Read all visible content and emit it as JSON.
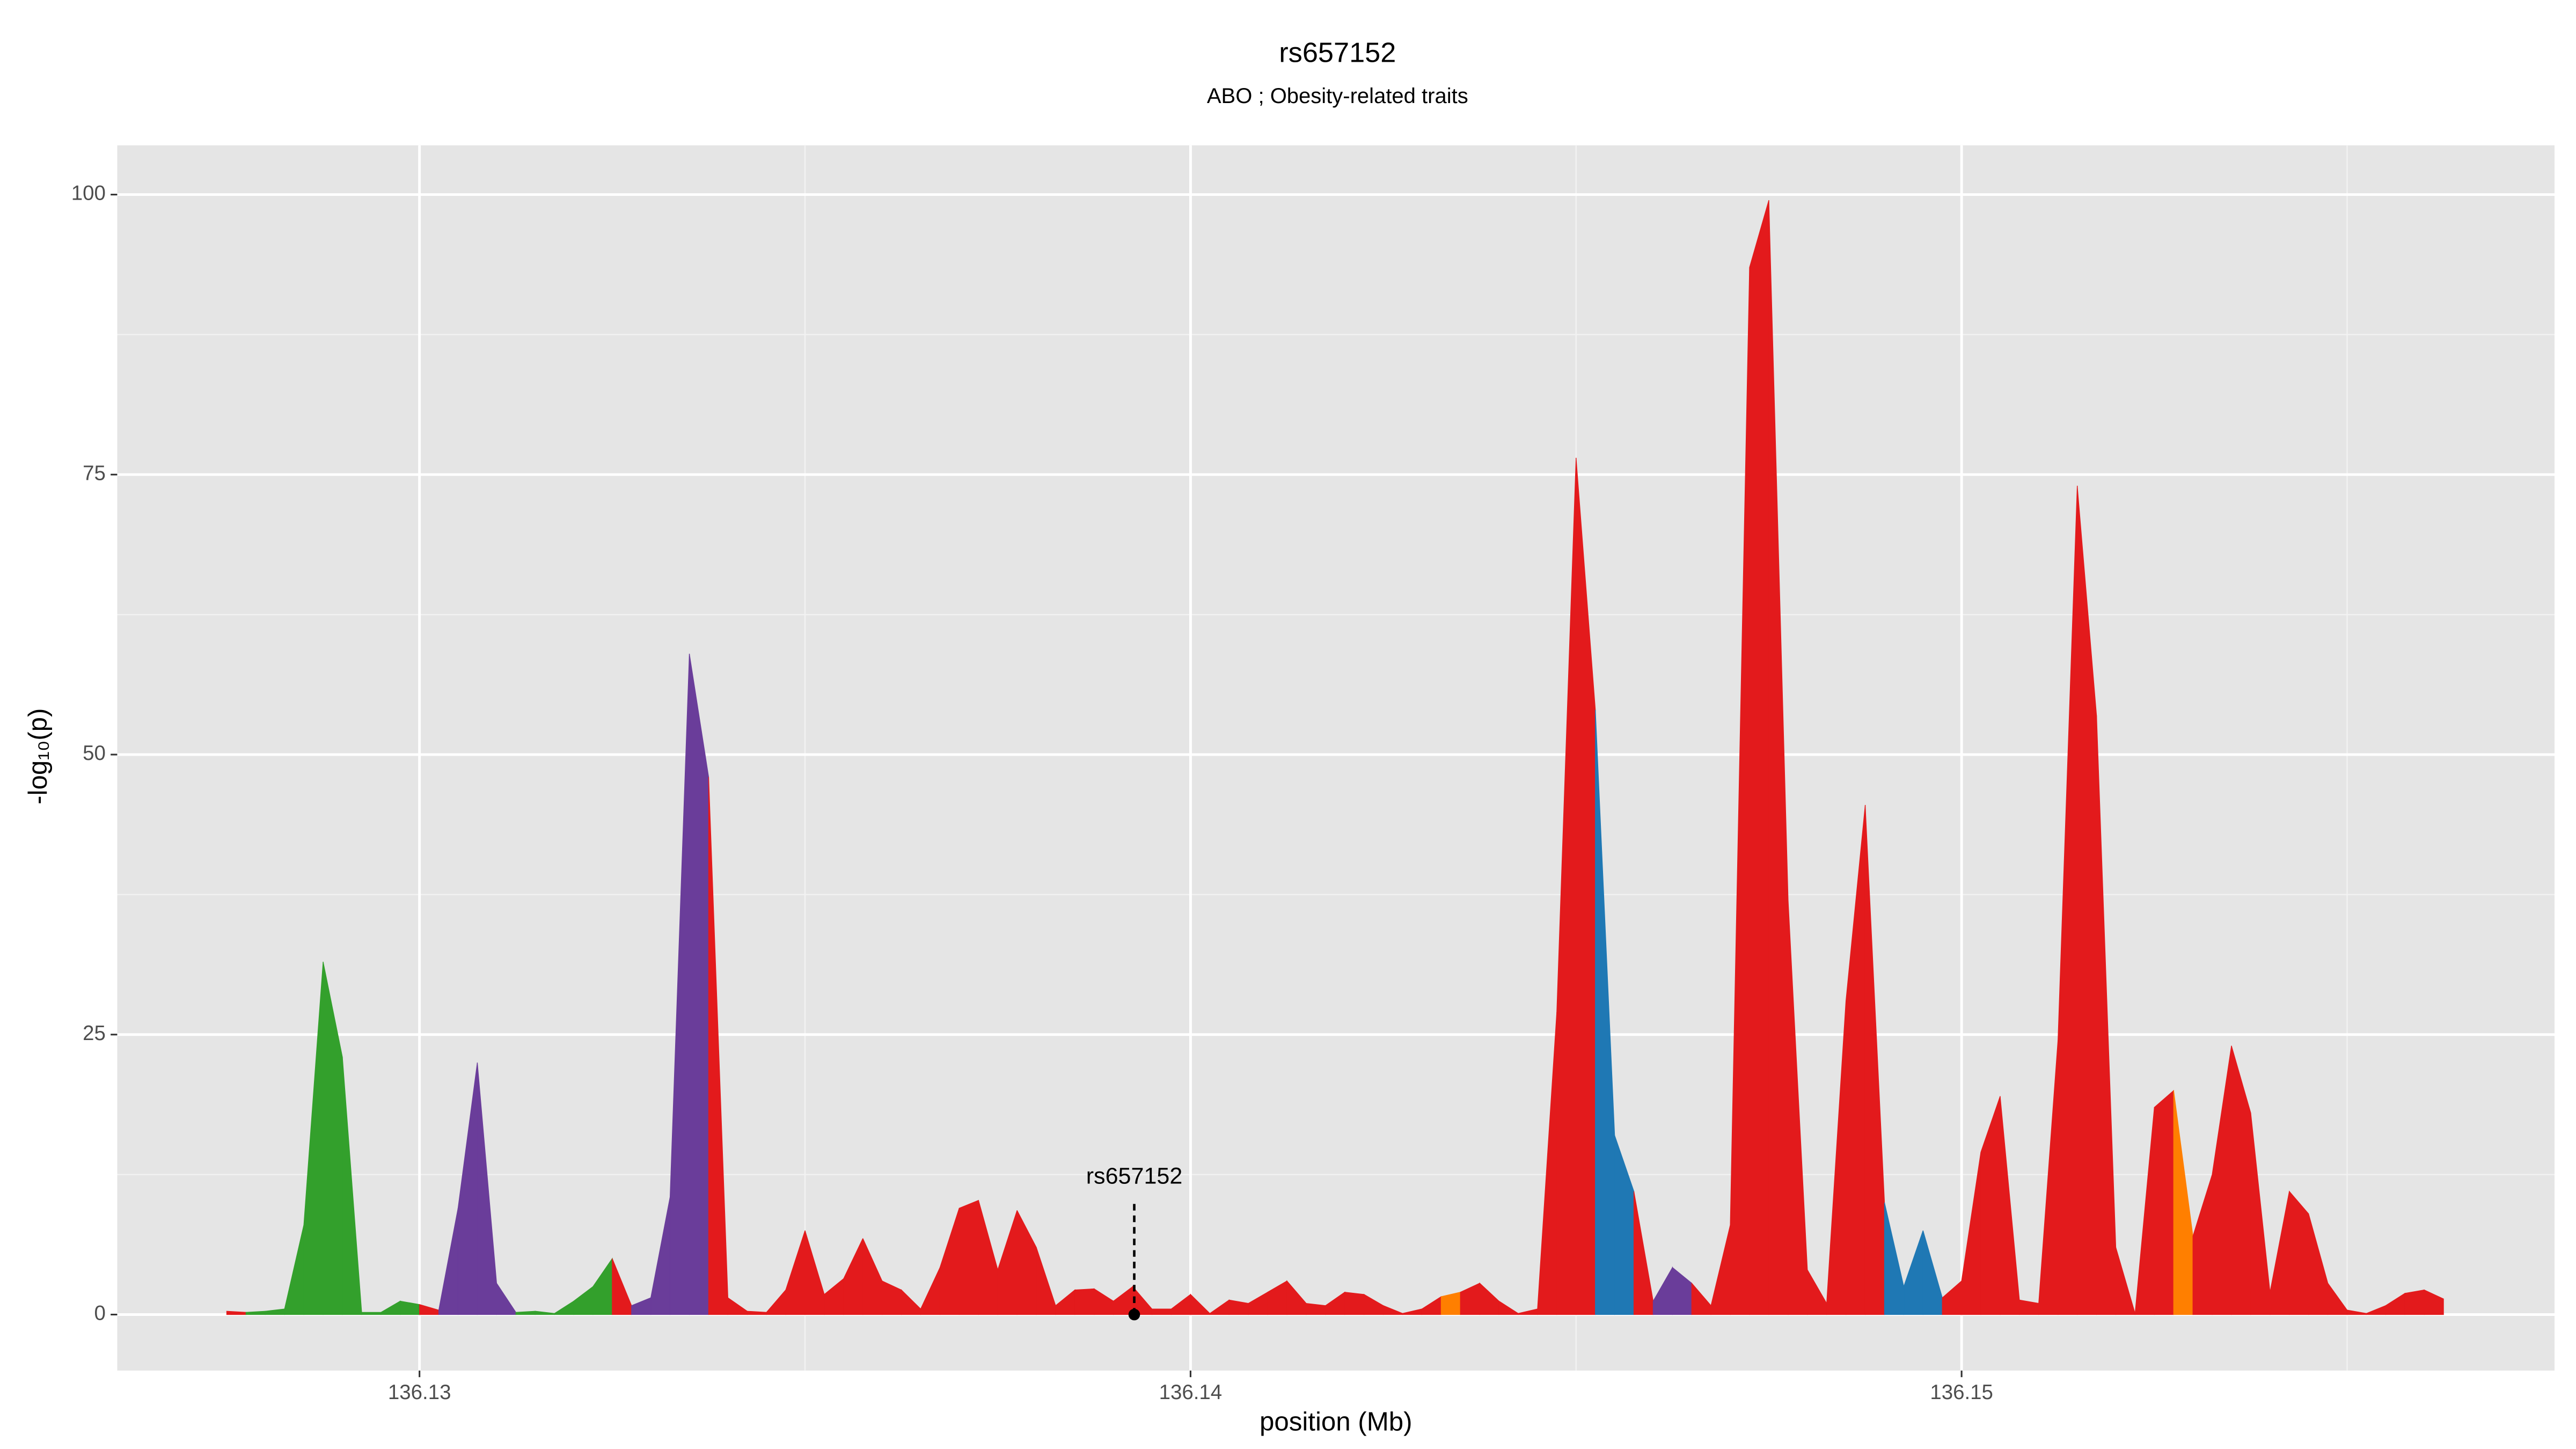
{
  "chart_data": {
    "type": "area",
    "title": "rs657152",
    "subtitle": "ABO ; Obesity-related traits",
    "x_label": "position (Mb)",
    "y_label": "-log₁₀(p)",
    "x": [
      136.1275,
      136.12775,
      136.128,
      136.12825,
      136.1285,
      136.12875,
      136.129,
      136.12925,
      136.1295,
      136.12975,
      136.13,
      136.13025,
      136.1305,
      136.13075,
      136.131,
      136.13125,
      136.1315,
      136.13175,
      136.132,
      136.13225,
      136.1325,
      136.13275,
      136.133,
      136.13325,
      136.1335,
      136.13375,
      136.134,
      136.13425,
      136.1345,
      136.13475,
      136.135,
      136.13525,
      136.1355,
      136.13575,
      136.136,
      136.13625,
      136.1365,
      136.13675,
      136.137,
      136.13725,
      136.1375,
      136.13775,
      136.138,
      136.13825,
      136.1385,
      136.13875,
      136.139,
      136.13925,
      136.1395,
      136.13975,
      136.14,
      136.14025,
      136.1405,
      136.14075,
      136.141,
      136.14125,
      136.1415,
      136.14175,
      136.142,
      136.14225,
      136.1425,
      136.14275,
      136.143,
      136.14325,
      136.1435,
      136.14375,
      136.144,
      136.14425,
      136.1445,
      136.14475,
      136.145,
      136.14525,
      136.1455,
      136.14575,
      136.146,
      136.14625,
      136.1465,
      136.14675,
      136.147,
      136.14725,
      136.1475,
      136.14775,
      136.148,
      136.14825,
      136.1485,
      136.14875,
      136.149,
      136.14925,
      136.1495,
      136.14975,
      136.15,
      136.15025,
      136.1505,
      136.15075,
      136.151,
      136.15125,
      136.1515,
      136.15175,
      136.152,
      136.15225,
      136.1525,
      136.15275,
      136.153,
      136.15325,
      136.1535,
      136.15375,
      136.154,
      136.15425,
      136.1545,
      136.15475,
      136.155,
      136.15525,
      136.1555,
      136.15575,
      136.156,
      136.15625
    ],
    "values": [
      0.3,
      0.2,
      0.3,
      0.5,
      8,
      31.5,
      23,
      0.2,
      0.2,
      1.2,
      0.9,
      0.4,
      9.5,
      22.5,
      2.8,
      0.2,
      0.3,
      0.1,
      1.2,
      2.5,
      5,
      0.8,
      1.5,
      10.5,
      59,
      48,
      1.5,
      0.3,
      0.2,
      2.2,
      7.5,
      1.8,
      3.2,
      6.8,
      3,
      2.2,
      0.5,
      4.2,
      9.5,
      10.2,
      4,
      9.3,
      6,
      0.8,
      2.2,
      2.3,
      1.2,
      2.5,
      0.5,
      0.5,
      1.8,
      0.1,
      1.3,
      1,
      2,
      3,
      1,
      0.8,
      2,
      1.8,
      0.8,
      0.1,
      0.5,
      1.6,
      2,
      2.8,
      1.2,
      0.1,
      0.5,
      27,
      76.5,
      54,
      16,
      11,
      1.2,
      4.2,
      2.8,
      0.8,
      8,
      93.5,
      99.5,
      37,
      4,
      1,
      28,
      45.5,
      10,
      2.5,
      7.5,
      1.5,
      3,
      14.5,
      19.5,
      1.3,
      1,
      24.5,
      74,
      53.5,
      6,
      0.1,
      18.5,
      20,
      7,
      12.5,
      24,
      18,
      2,
      11,
      9,
      2.8,
      0.4,
      0.1,
      0.8,
      1.9,
      2.2,
      1.4
    ],
    "segment_colors": [
      "#e31a1c",
      "#33a02c",
      "#33a02c",
      "#33a02c",
      "#33a02c",
      "#33a02c",
      "#33a02c",
      "#33a02c",
      "#33a02c",
      "#33a02c",
      "#e31a1c",
      "#6a3d9a",
      "#6a3d9a",
      "#6a3d9a",
      "#6a3d9a",
      "#33a02c",
      "#33a02c",
      "#33a02c",
      "#33a02c",
      "#33a02c",
      "#e31a1c",
      "#6a3d9a",
      "#6a3d9a",
      "#6a3d9a",
      "#6a3d9a",
      "#e31a1c",
      "#e31a1c",
      "#e31a1c",
      "#e31a1c",
      "#e31a1c",
      "#e31a1c",
      "#e31a1c",
      "#e31a1c",
      "#e31a1c",
      "#e31a1c",
      "#e31a1c",
      "#e31a1c",
      "#e31a1c",
      "#e31a1c",
      "#e31a1c",
      "#e31a1c",
      "#e31a1c",
      "#e31a1c",
      "#e31a1c",
      "#e31a1c",
      "#e31a1c",
      "#e31a1c",
      "#e31a1c",
      "#e31a1c",
      "#e31a1c",
      "#e31a1c",
      "#e31a1c",
      "#e31a1c",
      "#e31a1c",
      "#e31a1c",
      "#e31a1c",
      "#e31a1c",
      "#e31a1c",
      "#e31a1c",
      "#e31a1c",
      "#e31a1c",
      "#e31a1c",
      "#e31a1c",
      "#ff7f00",
      "#e31a1c",
      "#e31a1c",
      "#e31a1c",
      "#e31a1c",
      "#e31a1c",
      "#e31a1c",
      "#e31a1c",
      "#1f78b4",
      "#1f78b4",
      "#e31a1c",
      "#6a3d9a",
      "#6a3d9a",
      "#e31a1c",
      "#e31a1c",
      "#e31a1c",
      "#e31a1c",
      "#e31a1c",
      "#e31a1c",
      "#e31a1c",
      "#e31a1c",
      "#e31a1c",
      "#e31a1c",
      "#1f78b4",
      "#1f78b4",
      "#1f78b4",
      "#e31a1c",
      "#e31a1c",
      "#e31a1c",
      "#e31a1c",
      "#e31a1c",
      "#e31a1c",
      "#e31a1c",
      "#e31a1c",
      "#e31a1c",
      "#e31a1c",
      "#e31a1c",
      "#e31a1c",
      "#ff7f00",
      "#e31a1c",
      "#e31a1c",
      "#e31a1c",
      "#e31a1c",
      "#e31a1c",
      "#e31a1c",
      "#e31a1c",
      "#e31a1c",
      "#e31a1c",
      "#e31a1c",
      "#e31a1c",
      "#e31a1c",
      "#e31a1c"
    ],
    "annotation": {
      "text": "rs657152",
      "x": 136.13927,
      "y": 0
    },
    "xlim": [
      136.12608,
      136.15769
    ],
    "ylim": [
      -5,
      104.4
    ],
    "xticks": [
      136.13,
      136.14,
      136.15
    ],
    "yticks": [
      0,
      25,
      50,
      75,
      100
    ],
    "grid": true
  }
}
